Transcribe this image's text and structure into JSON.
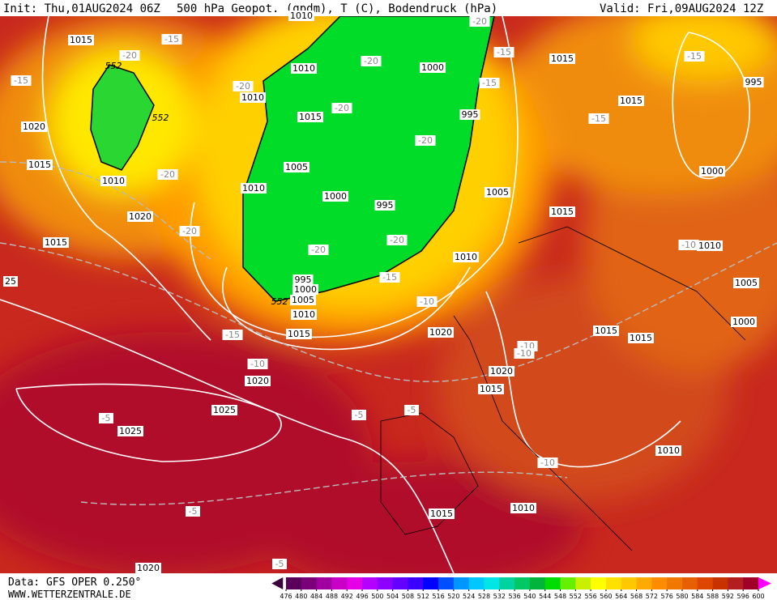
{
  "header": {
    "init": "Init: Thu,01AUG2024 06Z",
    "title": "500 hPa Geopot. (gpdm), T (C), Bodendruck (hPa)",
    "valid": "Valid: Fri,09AUG2024 12Z"
  },
  "footer": {
    "source": "Data: GFS OPER 0.250°",
    "website": "WWW.WETTERZENTRALE.DE"
  },
  "colorbar": {
    "ticks": [
      476,
      480,
      484,
      488,
      492,
      496,
      500,
      504,
      508,
      512,
      516,
      520,
      524,
      528,
      532,
      536,
      540,
      544,
      548,
      552,
      556,
      560,
      564,
      568,
      572,
      576,
      580,
      584,
      588,
      592,
      596,
      600
    ],
    "colors": [
      "#5a005a",
      "#7a007a",
      "#a000a0",
      "#c800c8",
      "#e600e6",
      "#b400ff",
      "#8c00ff",
      "#6400ff",
      "#3c00ff",
      "#0000ff",
      "#0050ff",
      "#0096ff",
      "#00c8ff",
      "#00e6e6",
      "#00d2a0",
      "#00c864",
      "#00b43c",
      "#00dc00",
      "#64f000",
      "#c8f000",
      "#ffff00",
      "#ffe100",
      "#ffc800",
      "#ffaa00",
      "#ff8c00",
      "#f07800",
      "#e65f00",
      "#dc4600",
      "#c83200",
      "#b41e1e",
      "#a00028"
    ],
    "low_color": "#3c003c",
    "high_color": "#ff00ff"
  },
  "map_labels": {
    "pressure": [
      "1015",
      "1010",
      "1010",
      "1015",
      "1005",
      "1010",
      "1000",
      "995",
      "995",
      "1000",
      "1005",
      "1010",
      "1015",
      "1020",
      "1020",
      "1025",
      "1025",
      "1020",
      "1015",
      "1010",
      "1010",
      "1015",
      "1020",
      "1015",
      "1015",
      "1000",
      "1005",
      "1010",
      "1010",
      "1015",
      "1005",
      "1000",
      "1015",
      "995",
      "1015",
      "1000",
      "995",
      "1010",
      "1020",
      "1015",
      "1010",
      "1020",
      "1015",
      "25"
    ],
    "temperature": [
      "-15",
      "-20",
      "-15",
      "-20",
      "-20",
      "-20",
      "-20",
      "-20",
      "-15",
      "-15",
      "-15",
      "-15",
      "-20",
      "-20",
      "-20",
      "-20",
      "-15",
      "-15",
      "-10",
      "-10",
      "-10",
      "-10",
      "-10",
      "-5",
      "-5",
      "-5",
      "-10",
      "-5",
      "-5"
    ],
    "geopotential": [
      "552",
      "552",
      "552"
    ]
  }
}
